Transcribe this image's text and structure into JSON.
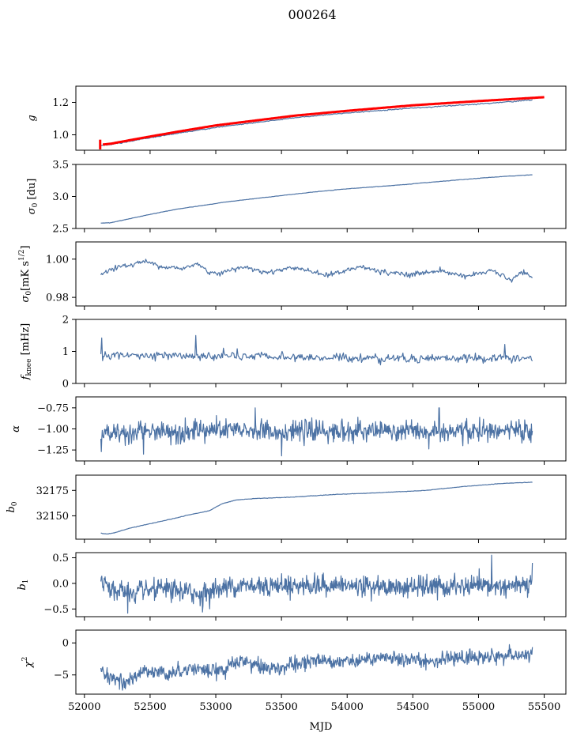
{
  "figure": {
    "title": "000264",
    "xlabel": "MJD"
  },
  "chart_data": [
    {
      "type": "line",
      "panel": "gain",
      "ylabel": "g",
      "ylabel_sub": "",
      "ylabel_unit": "",
      "xlim": [
        51935,
        55665
      ],
      "ylim": [
        0.905,
        1.3
      ],
      "yticks": [
        1.0,
        1.2
      ],
      "ytick_labels": [
        "1.0",
        "1.2"
      ],
      "xticks": [
        52000,
        52500,
        53000,
        53500,
        54000,
        54500,
        55000,
        55500
      ],
      "series": [
        {
          "name": "g",
          "color": "#4c72a4",
          "anchors": [
            [
              52125,
              0.935
            ],
            [
              52200,
              0.94
            ],
            [
              52400,
              0.968
            ],
            [
              52700,
              1.008
            ],
            [
              53000,
              1.045
            ],
            [
              53300,
              1.075
            ],
            [
              53600,
              1.105
            ],
            [
              54000,
              1.135
            ],
            [
              54500,
              1.165
            ],
            [
              55000,
              1.19
            ],
            [
              55410,
              1.215
            ]
          ],
          "noise": 0.002
        },
        {
          "name": "g_reference",
          "color": "#ff0000",
          "anchors": [
            [
              52140,
              0.94
            ],
            [
              52200,
              0.945
            ],
            [
              52400,
              0.975
            ],
            [
              52700,
              1.018
            ],
            [
              53000,
              1.058
            ],
            [
              53300,
              1.088
            ],
            [
              53600,
              1.118
            ],
            [
              54000,
              1.148
            ],
            [
              54500,
              1.182
            ],
            [
              55000,
              1.208
            ],
            [
              55500,
              1.232
            ]
          ],
          "errorbar": {
            "x": 52120,
            "y": 0.94,
            "err": 0.03
          },
          "noise": 0.0
        }
      ]
    },
    {
      "type": "line",
      "panel": "sigma0_du",
      "ylabel": "σ",
      "ylabel_sub": "0",
      "ylabel_unit": " [du]",
      "xlim": [
        51935,
        55665
      ],
      "ylim": [
        2.5,
        3.5
      ],
      "yticks": [
        2.5,
        3.0,
        3.5
      ],
      "ytick_labels": [
        "2.5",
        "3.0",
        "3.5"
      ],
      "xticks": [
        52000,
        52500,
        53000,
        53500,
        54000,
        54500,
        55000,
        55500
      ],
      "series": [
        {
          "name": "sigma0_du",
          "color": "#4c72a4",
          "anchors": [
            [
              52125,
              2.585
            ],
            [
              52200,
              2.59
            ],
            [
              52350,
              2.655
            ],
            [
              52500,
              2.72
            ],
            [
              52700,
              2.8
            ],
            [
              52900,
              2.86
            ],
            [
              53100,
              2.92
            ],
            [
              53400,
              2.99
            ],
            [
              53700,
              3.06
            ],
            [
              54000,
              3.12
            ],
            [
              54400,
              3.18
            ],
            [
              54800,
              3.25
            ],
            [
              55100,
              3.3
            ],
            [
              55410,
              3.34
            ]
          ],
          "noise": 0.002
        }
      ]
    },
    {
      "type": "line",
      "panel": "sigma0_mK",
      "ylabel": "σ",
      "ylabel_sub": "0",
      "ylabel_unit": "[mK s",
      "ylabel_sup": "1/2",
      "ylabel_close": "]",
      "xlim": [
        51935,
        55665
      ],
      "ylim": [
        0.9755,
        1.009
      ],
      "yticks": [
        0.98,
        1.0
      ],
      "ytick_labels": [
        "0.98",
        "1.00"
      ],
      "xticks": [
        52000,
        52500,
        53000,
        53500,
        54000,
        54500,
        55000,
        55500
      ],
      "series": [
        {
          "name": "sigma0_mK",
          "color": "#4c72a4",
          "anchors": [
            [
              52125,
              0.9915
            ],
            [
              52200,
              0.995
            ],
            [
              52350,
              0.997
            ],
            [
              52450,
              0.999
            ],
            [
              52600,
              0.996
            ],
            [
              52750,
              0.995
            ],
            [
              52850,
              0.998
            ],
            [
              52950,
              0.993
            ],
            [
              53050,
              0.993
            ],
            [
              53200,
              0.996
            ],
            [
              53400,
              0.993
            ],
            [
              53600,
              0.996
            ],
            [
              53800,
              0.992
            ],
            [
              53950,
              0.993
            ],
            [
              54100,
              0.996
            ],
            [
              54300,
              0.993
            ],
            [
              54500,
              0.992
            ],
            [
              54700,
              0.994
            ],
            [
              54900,
              0.991
            ],
            [
              55100,
              0.994
            ],
            [
              55250,
              0.989
            ],
            [
              55330,
              0.993
            ],
            [
              55410,
              0.9905
            ]
          ],
          "noise": 0.0009
        }
      ]
    },
    {
      "type": "line",
      "panel": "fknee",
      "ylabel": "f",
      "ylabel_sub": "knee",
      "ylabel_unit": " [mHz]",
      "xlim": [
        51935,
        55665
      ],
      "ylim": [
        0,
        2
      ],
      "yticks": [
        0,
        1,
        2
      ],
      "ytick_labels": [
        "0",
        "1",
        "2"
      ],
      "xticks": [
        52000,
        52500,
        53000,
        53500,
        54000,
        54500,
        55000,
        55500
      ],
      "series": [
        {
          "name": "fknee",
          "color": "#4c72a4",
          "anchors": [
            [
              52125,
              0.88
            ],
            [
              53000,
              0.85
            ],
            [
              54000,
              0.8
            ],
            [
              55410,
              0.78
            ]
          ],
          "noise": 0.09,
          "spikes": [
            [
              52130,
              1.42
            ],
            [
              52850,
              1.5
            ],
            [
              53060,
              1.1
            ],
            [
              55200,
              1.22
            ]
          ]
        }
      ]
    },
    {
      "type": "line",
      "panel": "alpha",
      "ylabel": "α",
      "ylabel_sub": "",
      "ylabel_unit": "",
      "xlim": [
        51935,
        55665
      ],
      "ylim": [
        -1.38,
        -0.62
      ],
      "yticks": [
        -1.25,
        -1.0,
        -0.75
      ],
      "ytick_labels": [
        "−1.25",
        "−1.00",
        "−0.75"
      ],
      "xticks": [
        52000,
        52500,
        53000,
        53500,
        54000,
        54500,
        55000,
        55500
      ],
      "series": [
        {
          "name": "alpha",
          "color": "#4c72a4",
          "anchors": [
            [
              52125,
              -1.05
            ],
            [
              53000,
              -1.02
            ],
            [
              54000,
              -1.03
            ],
            [
              55410,
              -1.03
            ]
          ],
          "noise": 0.08,
          "spikes": [
            [
              52130,
              -1.27
            ],
            [
              52450,
              -1.3
            ],
            [
              53300,
              -0.75
            ],
            [
              53500,
              -1.32
            ],
            [
              54700,
              -0.75
            ]
          ]
        }
      ]
    },
    {
      "type": "line",
      "panel": "b0",
      "ylabel": "b",
      "ylabel_sub": "0",
      "ylabel_unit": "",
      "xlim": [
        51935,
        55665
      ],
      "ylim": [
        32127,
        32190
      ],
      "yticks": [
        32150,
        32175
      ],
      "ytick_labels": [
        "32150",
        "32175"
      ],
      "xticks": [
        52000,
        52500,
        53000,
        53500,
        54000,
        54500,
        55000,
        55500
      ],
      "series": [
        {
          "name": "b0",
          "color": "#4c72a4",
          "anchors": [
            [
              52125,
              32133
            ],
            [
              52170,
              32132
            ],
            [
              52220,
              32133
            ],
            [
              52350,
              32138
            ],
            [
              52600,
              32145
            ],
            [
              52800,
              32151
            ],
            [
              52950,
              32155
            ],
            [
              53050,
              32162
            ],
            [
              53150,
              32165.5
            ],
            [
              53300,
              32167
            ],
            [
              53600,
              32168.5
            ],
            [
              53900,
              32171
            ],
            [
              54200,
              32172.5
            ],
            [
              54600,
              32175
            ],
            [
              54900,
              32179
            ],
            [
              55200,
              32182
            ],
            [
              55410,
              32183
            ]
          ],
          "noise": 0.15
        }
      ]
    },
    {
      "type": "line",
      "panel": "b1",
      "ylabel": "b",
      "ylabel_sub": "1",
      "ylabel_unit": "",
      "xlim": [
        51935,
        55665
      ],
      "ylim": [
        -0.65,
        0.6
      ],
      "yticks": [
        -0.5,
        0.0,
        0.5
      ],
      "ytick_labels": [
        "−0.5",
        "0.0",
        "0.5"
      ],
      "xticks": [
        52000,
        52500,
        53000,
        53500,
        54000,
        54500,
        55000,
        55500
      ],
      "series": [
        {
          "name": "b1",
          "color": "#4c72a4",
          "anchors": [
            [
              52125,
              0.0
            ],
            [
              52200,
              -0.1
            ],
            [
              52350,
              -0.2
            ],
            [
              52600,
              -0.12
            ],
            [
              52900,
              -0.2
            ],
            [
              53100,
              -0.05
            ],
            [
              53500,
              -0.03
            ],
            [
              54000,
              -0.05
            ],
            [
              54500,
              -0.08
            ],
            [
              55000,
              -0.06
            ],
            [
              55410,
              -0.05
            ]
          ],
          "noise": 0.13,
          "spikes": [
            [
              52330,
              -0.58
            ],
            [
              52900,
              -0.56
            ],
            [
              55100,
              0.55
            ],
            [
              55410,
              0.4
            ]
          ]
        }
      ]
    },
    {
      "type": "line",
      "panel": "chi2",
      "ylabel": "χ",
      "ylabel_sub": "",
      "ylabel_sup": "2",
      "ylabel_unit": "",
      "xlim": [
        51935,
        55665
      ],
      "ylim": [
        -8,
        2
      ],
      "yticks": [
        -5,
        0
      ],
      "ytick_labels": [
        "−5",
        "0"
      ],
      "xticks": [
        52000,
        52500,
        53000,
        53500,
        54000,
        54500,
        55000,
        55500
      ],
      "xtick_labels": [
        "52000",
        "52500",
        "53000",
        "53500",
        "54000",
        "54500",
        "55000",
        "55500"
      ],
      "series": [
        {
          "name": "chi2",
          "color": "#4c72a4",
          "anchors": [
            [
              52125,
              -4.5
            ],
            [
              52200,
              -5.3
            ],
            [
              52300,
              -6.3
            ],
            [
              52400,
              -5.0
            ],
            [
              52500,
              -4.2
            ],
            [
              52650,
              -4.8
            ],
            [
              52800,
              -3.8
            ],
            [
              53000,
              -4.6
            ],
            [
              53200,
              -2.8
            ],
            [
              53400,
              -4.0
            ],
            [
              53600,
              -3.5
            ],
            [
              53800,
              -2.5
            ],
            [
              54000,
              -2.9
            ],
            [
              54300,
              -2.4
            ],
            [
              54600,
              -2.8
            ],
            [
              55000,
              -2.2
            ],
            [
              55410,
              -1.9
            ]
          ],
          "noise": 0.75
        }
      ]
    }
  ]
}
